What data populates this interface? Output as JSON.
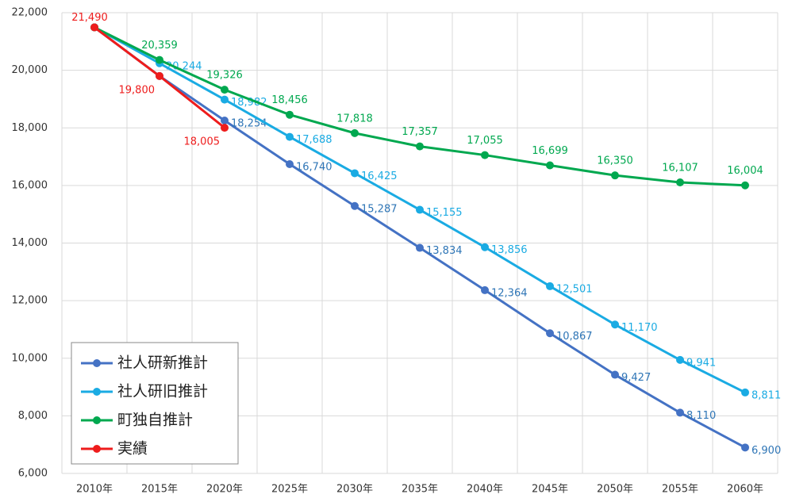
{
  "chart_data": {
    "type": "line",
    "categories": [
      "2010年",
      "2015年",
      "2020年",
      "2025年",
      "2030年",
      "2035年",
      "2040年",
      "2045年",
      "2050年",
      "2055年",
      "2060年"
    ],
    "series": [
      {
        "name": "社人研新推計",
        "color": "#4472c4",
        "label_color": "#2e75b6",
        "values": [
          21490,
          19800,
          18254,
          16740,
          15287,
          13834,
          12364,
          10867,
          9427,
          8110,
          6900
        ],
        "value_labels": [
          null,
          null,
          "18,254",
          "16,740",
          "15,287",
          "13,834",
          "12,364",
          "10,867",
          "9,427",
          "8,110",
          "6,900"
        ]
      },
      {
        "name": "社人研旧推計",
        "color": "#1aabe3",
        "label_color": "#1aabe3",
        "values": [
          21490,
          20244,
          18982,
          17688,
          16425,
          15155,
          13856,
          12501,
          11170,
          9941,
          8811
        ],
        "value_labels": [
          null,
          "20,244",
          "18,982",
          "17,688",
          "16,425",
          "15,155",
          "13,856",
          "12,501",
          "11,170",
          "9,941",
          "8,811"
        ]
      },
      {
        "name": "町独自推計",
        "color": "#00a84f",
        "label_color": "#00a84f",
        "values": [
          21490,
          20359,
          19326,
          18456,
          17818,
          17357,
          17055,
          16699,
          16350,
          16107,
          16004
        ],
        "value_labels": [
          null,
          "20,359",
          "19,326",
          "18,456",
          "17,818",
          "17,357",
          "17,055",
          "16,699",
          "16,350",
          "16,107",
          "16,004"
        ]
      },
      {
        "name": "実績",
        "color": "#ee1c1c",
        "label_color": "#ee1c1c",
        "values": [
          21490,
          19800,
          18005,
          null,
          null,
          null,
          null,
          null,
          null,
          null,
          null
        ],
        "value_labels": [
          "21,490",
          "19,800",
          "18,005",
          null,
          null,
          null,
          null,
          null,
          null,
          null,
          null
        ]
      }
    ],
    "ylim": [
      6000,
      22000
    ],
    "yticks": [
      {
        "value": 6000,
        "label": "6,000"
      },
      {
        "value": 8000,
        "label": "8,000"
      },
      {
        "value": 10000,
        "label": "10,000"
      },
      {
        "value": 12000,
        "label": "12,000"
      },
      {
        "value": 14000,
        "label": "14,000"
      },
      {
        "value": 16000,
        "label": "16,000"
      },
      {
        "value": 18000,
        "label": "18,000"
      },
      {
        "value": 20000,
        "label": "20,000"
      },
      {
        "value": 22000,
        "label": "22,000"
      }
    ],
    "grid": true,
    "legend": "lower left"
  }
}
